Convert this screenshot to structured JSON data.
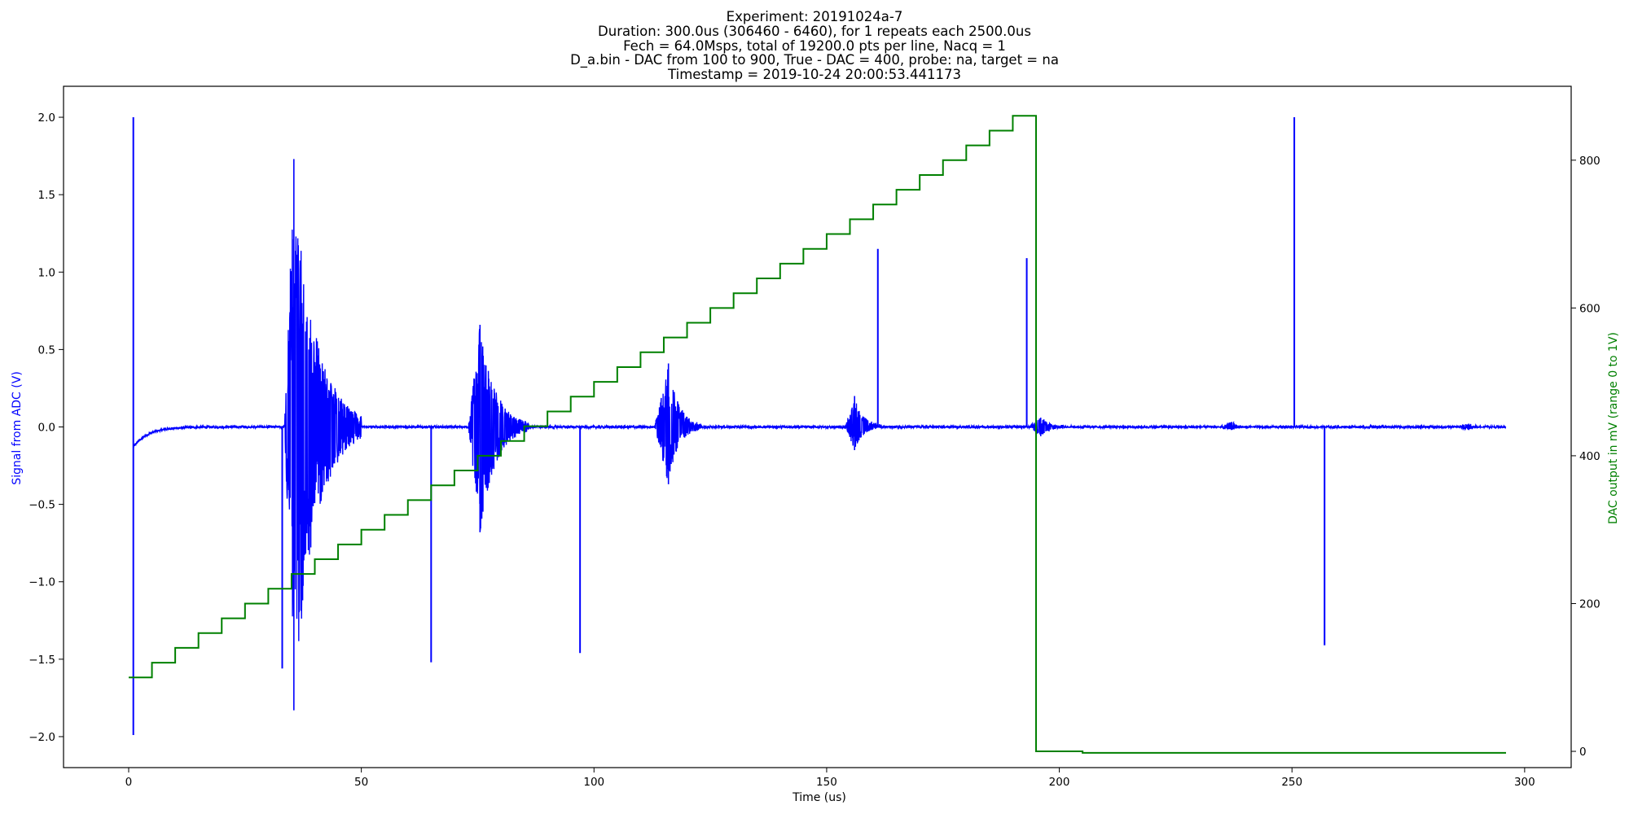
{
  "chart_data": {
    "type": "line",
    "title_lines": [
      "Experiment: 20191024a-7",
      "Duration: 300.0us (306460 - 6460), for 1 repeats each 2500.0us",
      "Fech = 64.0Msps, total of 19200.0 pts per line, Nacq = 1",
      "D_a.bin - DAC from 100 to 900, True - DAC = 400, probe: na, target = na",
      "Timestamp = 2019-10-24 20:00:53.441173"
    ],
    "xlabel": "Time (us)",
    "ylabel": "Signal from ADC (V)",
    "ylabel_right": "DAC output in mV (range 0 to 1V)",
    "xlim": [
      -14,
      310
    ],
    "ylim": [
      -2.2,
      2.2
    ],
    "ylim_right": [
      -22,
      900
    ],
    "x_ticks": [
      0,
      50,
      100,
      150,
      200,
      250,
      300
    ],
    "x_tick_labels": [
      "0",
      "50",
      "100",
      "150",
      "200",
      "250",
      "300"
    ],
    "y_ticks": [
      -2.0,
      -1.5,
      -1.0,
      -0.5,
      0.0,
      0.5,
      1.0,
      1.5,
      2.0
    ],
    "y_tick_labels": [
      "−2.0",
      "−1.5",
      "−1.0",
      "−0.5",
      "0.0",
      "0.5",
      "1.0",
      "1.5",
      "2.0"
    ],
    "y_ticks_right": [
      0,
      200,
      400,
      600,
      800
    ],
    "y_tick_labels_right": [
      "0",
      "200",
      "400",
      "600",
      "800"
    ],
    "grid": false,
    "series": [
      {
        "axis": "left",
        "color": "#0000ff",
        "baseline_decay": {
          "start_x": 1.0,
          "start_y": -0.13,
          "end_x": 20,
          "end_y": 0.0
        },
        "x_end": 296,
        "spikes": [
          {
            "x": 1.0,
            "min": -1.99,
            "max": 2.0
          },
          {
            "x": 33.0,
            "min": -1.56,
            "max": 0.0
          },
          {
            "x": 65.0,
            "min": -1.52,
            "max": 0.0
          },
          {
            "x": 97.0,
            "min": -1.46,
            "max": 0.0
          },
          {
            "x": 161.0,
            "min": 0.0,
            "max": 1.15
          },
          {
            "x": 193.0,
            "min": 0.0,
            "max": 1.09
          },
          {
            "x": 250.5,
            "min": 0.0,
            "max": 2.0
          },
          {
            "x": 257.0,
            "min": -1.41,
            "max": 0.0
          }
        ],
        "bursts": [
          {
            "x_start": 33.5,
            "x_end": 50,
            "peak": 1.73,
            "trough": -1.83,
            "peak_x": 35.5
          },
          {
            "x_start": 73,
            "x_end": 86,
            "peak": 0.66,
            "trough": -0.68,
            "peak_x": 75.5
          },
          {
            "x_start": 113,
            "x_end": 123,
            "peak": 0.41,
            "trough": -0.37,
            "peak_x": 116
          },
          {
            "x_start": 154,
            "x_end": 162,
            "peak": 0.2,
            "trough": -0.15,
            "peak_x": 156
          },
          {
            "x_start": 193.5,
            "x_end": 203,
            "peak": 0.06,
            "trough": -0.06,
            "peak_x": 196
          },
          {
            "x_start": 234,
            "x_end": 242,
            "peak": 0.03,
            "trough": -0.02,
            "peak_x": 237
          },
          {
            "x_start": 285,
            "x_end": 292,
            "peak": 0.02,
            "trough": -0.02,
            "peak_x": 288
          }
        ]
      },
      {
        "axis": "right",
        "color": "#008000",
        "steps": [
          [
            0,
            100
          ],
          [
            5,
            120
          ],
          [
            10,
            140
          ],
          [
            15,
            160
          ],
          [
            20,
            180
          ],
          [
            25,
            200
          ],
          [
            30,
            220
          ],
          [
            35,
            240
          ],
          [
            40,
            260
          ],
          [
            45,
            280
          ],
          [
            50,
            300
          ],
          [
            55,
            320
          ],
          [
            60,
            340
          ],
          [
            65,
            360
          ],
          [
            70,
            380
          ],
          [
            75,
            400
          ],
          [
            80,
            420
          ],
          [
            85,
            440
          ],
          [
            90,
            460
          ],
          [
            95,
            480
          ],
          [
            100,
            500
          ],
          [
            105,
            520
          ],
          [
            110,
            540
          ],
          [
            115,
            560
          ],
          [
            120,
            580
          ],
          [
            125,
            600
          ],
          [
            130,
            620
          ],
          [
            135,
            640
          ],
          [
            140,
            660
          ],
          [
            145,
            680
          ],
          [
            150,
            700
          ],
          [
            155,
            720
          ],
          [
            160,
            740
          ],
          [
            165,
            760
          ],
          [
            170,
            780
          ],
          [
            175,
            800
          ],
          [
            180,
            820
          ],
          [
            185,
            840
          ],
          [
            190,
            860
          ],
          [
            195,
            0
          ],
          [
            205,
            -2
          ]
        ],
        "x_end": 296
      }
    ]
  }
}
